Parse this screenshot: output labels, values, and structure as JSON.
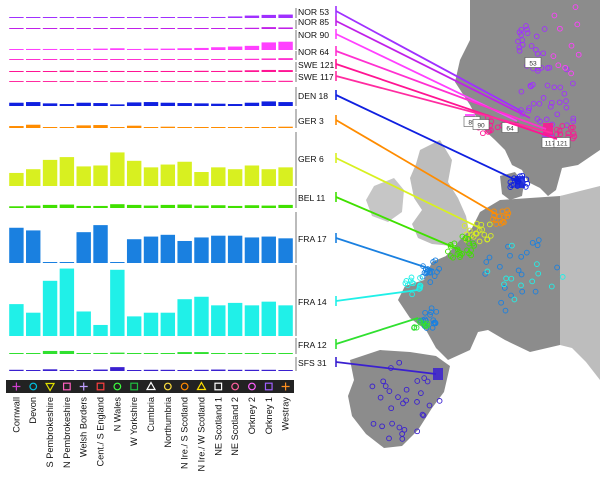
{
  "chart_data": {
    "type": "bar",
    "categories": [
      "Cornwall",
      "Devon",
      "S Pembrokeshire",
      "N Pembrokeshire",
      "Welsh Borders",
      "Cent./ S England",
      "N Wales",
      "W Yorkshire",
      "Cumbria",
      "Northumbria",
      "N Ire./ S Scotland",
      "N Ire./ W Scotland",
      "NE Scotland 1",
      "NE Scotland 2",
      "Orkney 2",
      "Orkney 1",
      "Westray"
    ],
    "region_symbols": [
      {
        "symbol": "+",
        "color": "#d040d0"
      },
      {
        "symbol": "o",
        "color": "#00c0e0"
      },
      {
        "symbol": "v",
        "color": "#e0e000"
      },
      {
        "symbol": "s",
        "color": "#ff60c0"
      },
      {
        "symbol": "+",
        "color": "#c0a0ff"
      },
      {
        "symbol": "s",
        "color": "#ff4040"
      },
      {
        "symbol": "o",
        "color": "#40ff40"
      },
      {
        "symbol": "s",
        "color": "#20c040"
      },
      {
        "symbol": "^",
        "color": "#ffffff"
      },
      {
        "symbol": "o",
        "color": "#ffe040"
      },
      {
        "symbol": "o",
        "color": "#ff8800"
      },
      {
        "symbol": "^",
        "color": "#ffe000"
      },
      {
        "symbol": "s",
        "color": "#ffffff"
      },
      {
        "symbol": "o",
        "color": "#ff60a0"
      },
      {
        "symbol": "o",
        "color": "#ff60ff"
      },
      {
        "symbol": "s",
        "color": "#a060ff"
      },
      {
        "symbol": "+",
        "color": "#ff9020"
      }
    ],
    "series": [
      {
        "name": "NOR 53",
        "color": "#a030ff",
        "values": [
          0.02,
          0.03,
          0.02,
          0.03,
          0.03,
          0.05,
          0.03,
          0.02,
          0.04,
          0.02,
          0.03,
          0.05,
          0.06,
          0.09,
          0.14,
          0.18,
          0.2
        ]
      },
      {
        "name": "NOR 85",
        "color": "#c020e8",
        "values": [
          0.02,
          0.03,
          0.02,
          0.02,
          0.03,
          0.02,
          0.02,
          0.03,
          0.02,
          0.03,
          0.02,
          0.03,
          0.04,
          0.05,
          0.08,
          0.12,
          0.1
        ]
      },
      {
        "name": "NOR 90",
        "color": "#ff40ff",
        "values": [
          0.02,
          0.03,
          0.03,
          0.02,
          0.03,
          0.04,
          0.05,
          0.03,
          0.04,
          0.04,
          0.05,
          0.06,
          0.08,
          0.1,
          0.12,
          0.22,
          0.24
        ]
      },
      {
        "name": "NOR 64",
        "color": "#ff30d0",
        "values": [
          0.02,
          0.02,
          0.03,
          0.02,
          0.03,
          0.03,
          0.02,
          0.03,
          0.03,
          0.04,
          0.03,
          0.04,
          0.05,
          0.06,
          0.08,
          0.1,
          0.12
        ]
      },
      {
        "name": "SWE 121",
        "color": "#ff1493",
        "values": [
          0.04,
          0.05,
          0.04,
          0.08,
          0.06,
          0.05,
          0.06,
          0.04,
          0.05,
          0.06,
          0.05,
          0.07,
          0.06,
          0.08,
          0.1,
          0.12,
          0.11
        ]
      },
      {
        "name": "SWE 117",
        "color": "#ff2ca0",
        "values": [
          0.02,
          0.04,
          0.02,
          0.05,
          0.04,
          0.02,
          0.03,
          0.02,
          0.03,
          0.04,
          0.04,
          0.03,
          0.05,
          0.06,
          0.08,
          0.07,
          0.08
        ]
      },
      {
        "name": "DEN 18",
        "color": "#1020e0",
        "values": [
          0.1,
          0.12,
          0.08,
          0.06,
          0.1,
          0.09,
          0.05,
          0.11,
          0.12,
          0.1,
          0.09,
          0.08,
          0.07,
          0.06,
          0.1,
          0.14,
          0.12
        ]
      },
      {
        "name": "GER 3",
        "color": "#ff8c00",
        "values": [
          0.06,
          0.1,
          0.02,
          0.01,
          0.08,
          0.09,
          0.02,
          0.07,
          0.03,
          0.04,
          0.03,
          0.02,
          0.01,
          0.02,
          0.02,
          0.03,
          0.04
        ]
      },
      {
        "name": "GER 6",
        "color": "#d8f020",
        "values": [
          0.14,
          0.18,
          0.28,
          0.31,
          0.21,
          0.22,
          0.36,
          0.27,
          0.2,
          0.23,
          0.26,
          0.15,
          0.2,
          0.18,
          0.22,
          0.18,
          0.2
        ]
      },
      {
        "name": "BEL 11",
        "color": "#40e000",
        "values": [
          0.05,
          0.07,
          0.09,
          0.1,
          0.06,
          0.06,
          0.11,
          0.09,
          0.07,
          0.09,
          0.1,
          0.07,
          0.08,
          0.06,
          0.08,
          0.07,
          0.09
        ]
      },
      {
        "name": "FRA 17",
        "color": "#1a80e0",
        "values": [
          0.4,
          0.37,
          0.01,
          0.01,
          0.35,
          0.43,
          0.01,
          0.27,
          0.3,
          0.32,
          0.25,
          0.29,
          0.31,
          0.31,
          0.29,
          0.3,
          0.28
        ]
      },
      {
        "name": "FRA 14",
        "color": "#20f0e8",
        "values": [
          0.26,
          0.19,
          0.45,
          0.55,
          0.2,
          0.09,
          0.54,
          0.16,
          0.19,
          0.19,
          0.3,
          0.32,
          0.25,
          0.27,
          0.25,
          0.28,
          0.25
        ]
      },
      {
        "name": "FRA 12",
        "color": "#30e030",
        "values": [
          0.01,
          0.01,
          0.11,
          0.11,
          0.01,
          0.01,
          0.05,
          0.01,
          0.01,
          0.01,
          0.07,
          0.07,
          0.01,
          0.01,
          0.01,
          0.02,
          0.01
        ]
      },
      {
        "name": "SFS 31",
        "color": "#3a20d0",
        "values": [
          0.05,
          0.04,
          0.07,
          0.04,
          0.03,
          0.06,
          0.16,
          0.04,
          0.05,
          0.05,
          0.04,
          0.05,
          0.06,
          0.05,
          0.05,
          0.05,
          0.04
        ]
      }
    ],
    "map_labels": [
      "53",
      "85",
      "90",
      "64",
      "117",
      "121"
    ]
  }
}
